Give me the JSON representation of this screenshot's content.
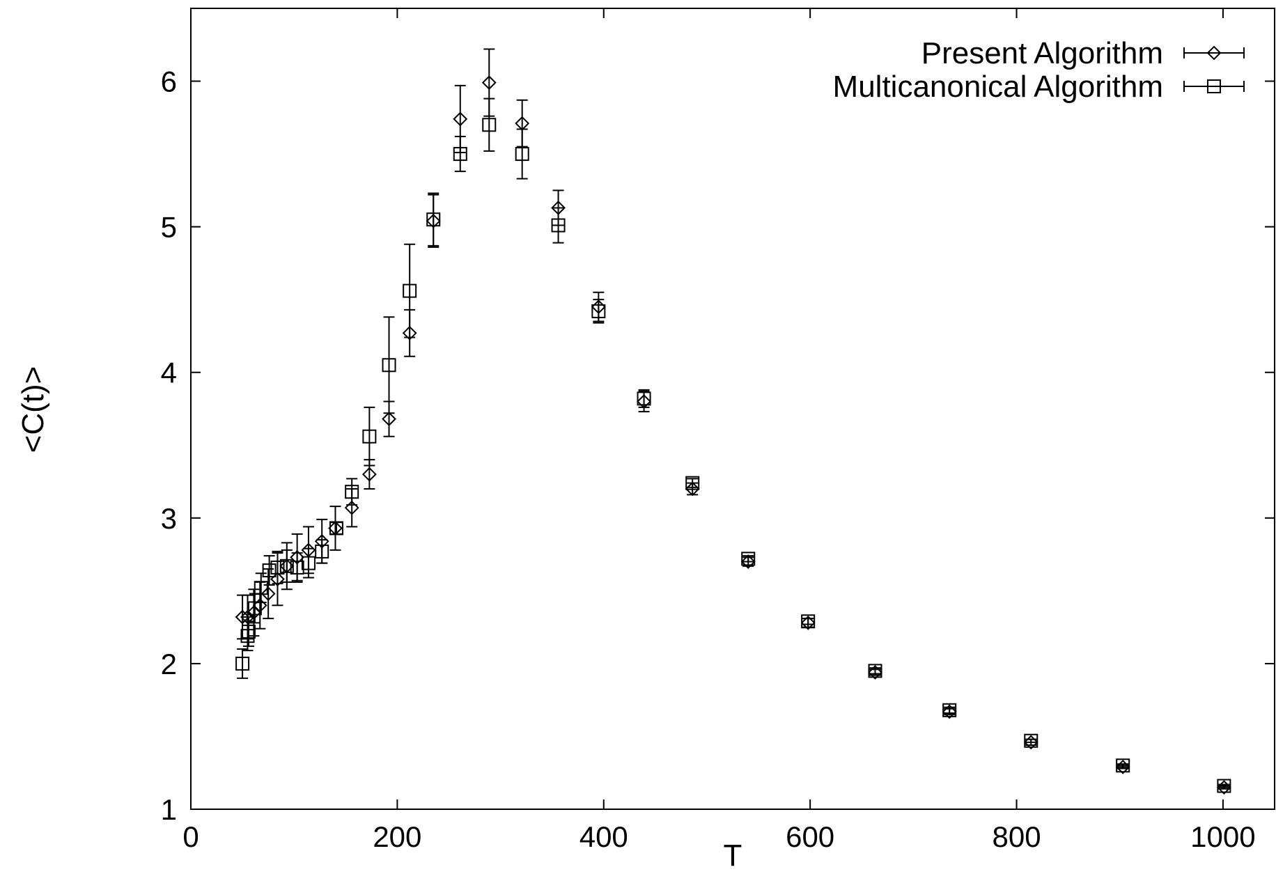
{
  "chart_data": {
    "type": "scatter",
    "title": "",
    "xlabel": "T",
    "ylabel": "<C(t)>",
    "xlim": [
      0,
      1050
    ],
    "ylim": [
      1,
      6.5
    ],
    "xticks": [
      "0",
      "200",
      "400",
      "600",
      "800",
      "1000"
    ],
    "yticks": [
      "1",
      "2",
      "3",
      "4",
      "5",
      "6"
    ],
    "grid": false,
    "legend_position": "top-right",
    "series": [
      {
        "name": "Present Algorithm",
        "marker": "diamond",
        "points": [
          {
            "x": 50,
            "y": 2.32,
            "err": 0.15
          },
          {
            "x": 55,
            "y": 2.32,
            "err": 0.15
          },
          {
            "x": 61,
            "y": 2.35,
            "err": 0.16
          },
          {
            "x": 67,
            "y": 2.4,
            "err": 0.16
          },
          {
            "x": 75,
            "y": 2.48,
            "err": 0.17
          },
          {
            "x": 84,
            "y": 2.58,
            "err": 0.18
          },
          {
            "x": 93,
            "y": 2.67,
            "err": 0.16
          },
          {
            "x": 103,
            "y": 2.73,
            "err": 0.16
          },
          {
            "x": 114,
            "y": 2.78,
            "err": 0.16
          },
          {
            "x": 127,
            "y": 2.84,
            "err": 0.15
          },
          {
            "x": 140,
            "y": 2.93,
            "err": 0.15
          },
          {
            "x": 156,
            "y": 3.07,
            "err": 0.13
          },
          {
            "x": 173,
            "y": 3.3,
            "err": 0.1
          },
          {
            "x": 192,
            "y": 3.68,
            "err": 0.12
          },
          {
            "x": 212,
            "y": 4.27,
            "err": 0.16
          },
          {
            "x": 235,
            "y": 5.04,
            "err": 0.18
          },
          {
            "x": 261,
            "y": 5.74,
            "err": 0.23
          },
          {
            "x": 289,
            "y": 5.99,
            "err": 0.23
          },
          {
            "x": 321,
            "y": 5.71,
            "err": 0.16
          },
          {
            "x": 356,
            "y": 5.13,
            "err": 0.12
          },
          {
            "x": 395,
            "y": 4.45,
            "err": 0.1
          },
          {
            "x": 439,
            "y": 3.8,
            "err": 0.07
          },
          {
            "x": 486,
            "y": 3.2,
            "err": 0.04
          },
          {
            "x": 540,
            "y": 2.7,
            "err": 0.03
          },
          {
            "x": 598,
            "y": 2.28,
            "err": 0.03
          },
          {
            "x": 663,
            "y": 1.94,
            "err": 0.02
          },
          {
            "x": 735,
            "y": 1.67,
            "err": 0.02
          },
          {
            "x": 814,
            "y": 1.46,
            "err": 0.02
          },
          {
            "x": 903,
            "y": 1.29,
            "err": 0.01
          },
          {
            "x": 1001,
            "y": 1.15,
            "err": 0.01
          }
        ]
      },
      {
        "name": "Multicanonical Algorithm",
        "marker": "square",
        "points": [
          {
            "x": 50,
            "y": 2.0,
            "err": 0.1
          },
          {
            "x": 55,
            "y": 2.19,
            "err": 0.1
          },
          {
            "x": 56,
            "y": 2.22,
            "err": 0.1
          },
          {
            "x": 62,
            "y": 2.38,
            "err": 0.1
          },
          {
            "x": 68,
            "y": 2.52,
            "err": 0.1
          },
          {
            "x": 76,
            "y": 2.64,
            "err": 0.1
          },
          {
            "x": 84,
            "y": 2.66,
            "err": 0.11
          },
          {
            "x": 93,
            "y": 2.67,
            "err": 0.11
          },
          {
            "x": 103,
            "y": 2.66,
            "err": 0.1
          },
          {
            "x": 114,
            "y": 2.69,
            "err": 0.1
          },
          {
            "x": 127,
            "y": 2.77,
            "err": 0.08
          },
          {
            "x": 141,
            "y": 2.93,
            "err": 0.04
          },
          {
            "x": 156,
            "y": 3.18,
            "err": 0.09
          },
          {
            "x": 173,
            "y": 3.56,
            "err": 0.2
          },
          {
            "x": 192,
            "y": 4.05,
            "err": 0.33
          },
          {
            "x": 212,
            "y": 4.56,
            "err": 0.32
          },
          {
            "x": 235,
            "y": 5.05,
            "err": 0.18
          },
          {
            "x": 261,
            "y": 5.5,
            "err": 0.12
          },
          {
            "x": 289,
            "y": 5.7,
            "err": 0.18
          },
          {
            "x": 321,
            "y": 5.5,
            "err": 0.17
          },
          {
            "x": 356,
            "y": 5.01,
            "err": 0.12
          },
          {
            "x": 395,
            "y": 4.42,
            "err": 0.08
          },
          {
            "x": 439,
            "y": 3.82,
            "err": 0.06
          },
          {
            "x": 486,
            "y": 3.24,
            "err": 0.03
          },
          {
            "x": 540,
            "y": 2.72,
            "err": 0.02
          },
          {
            "x": 598,
            "y": 2.29,
            "err": 0.02
          },
          {
            "x": 663,
            "y": 1.95,
            "err": 0.02
          },
          {
            "x": 735,
            "y": 1.68,
            "err": 0.02
          },
          {
            "x": 814,
            "y": 1.47,
            "err": 0.01
          },
          {
            "x": 903,
            "y": 1.3,
            "err": 0.01
          },
          {
            "x": 1001,
            "y": 1.16,
            "err": 0.01
          }
        ]
      }
    ]
  }
}
